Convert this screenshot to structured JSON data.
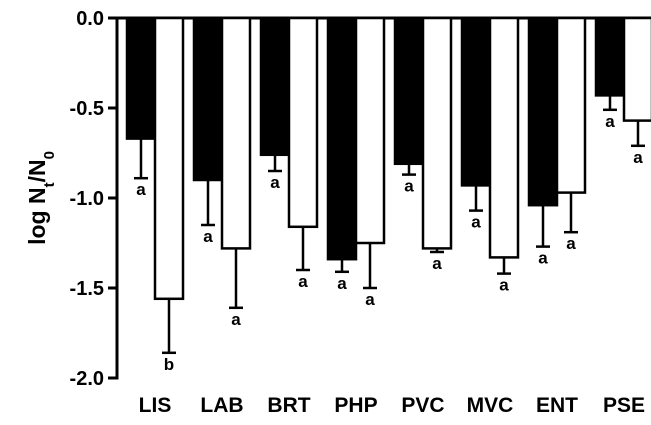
{
  "chart_data": {
    "type": "bar",
    "title": "",
    "xlabel": "",
    "ylabel_main": "log N",
    "ylabel_sub_t": "t",
    "ylabel_slash": "/N",
    "ylabel_sub_0": "0",
    "ylim": [
      -2.0,
      0.0
    ],
    "yticks": [
      {
        "value": 0.0,
        "label": "0.0"
      },
      {
        "value": -0.5,
        "label": "-0.5"
      },
      {
        "value": -1.0,
        "label": "-1.0"
      },
      {
        "value": -1.5,
        "label": "-1.5"
      },
      {
        "value": -2.0,
        "label": "-2.0"
      }
    ],
    "categories": [
      "LIS",
      "LAB",
      "BRT",
      "PHP",
      "PVC",
      "MVC",
      "ENT",
      "PSE"
    ],
    "series": [
      {
        "fill": "#000000",
        "values": [
          -0.67,
          -0.9,
          -0.76,
          -1.34,
          -0.81,
          -0.93,
          -1.04,
          -0.43
        ],
        "error": [
          0.22,
          0.25,
          0.09,
          0.07,
          0.06,
          0.14,
          0.23,
          0.08
        ],
        "sig": [
          "a",
          "a",
          "a",
          "a",
          "a",
          "a",
          "a",
          "a"
        ]
      },
      {
        "fill": "#ffffff",
        "values": [
          -1.56,
          -1.28,
          -1.16,
          -1.25,
          -1.28,
          -1.33,
          -0.97,
          -0.57
        ],
        "error": [
          0.3,
          0.33,
          0.24,
          0.25,
          0.02,
          0.09,
          0.22,
          0.14
        ],
        "sig": [
          "b",
          "a",
          "a",
          "a",
          "a",
          "a",
          "a",
          "a"
        ]
      }
    ],
    "grid": false,
    "legend": "none"
  }
}
